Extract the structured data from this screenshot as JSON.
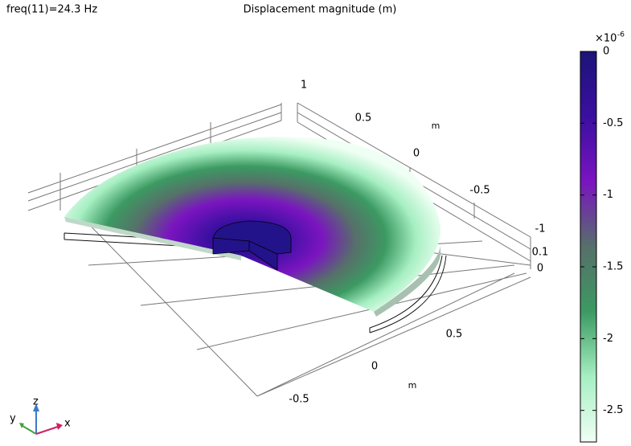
{
  "chart_data": {
    "type": "surface3d",
    "annotation": "freq(11)=24.3 Hz",
    "title": "Displacement magnitude (m)",
    "colormap": [
      "#1c1478",
      "#3a0fa0",
      "#7a14c0",
      "#56706a",
      "#3c9a62",
      "#a6efc2",
      "#f0fff4"
    ],
    "colorbar": {
      "multiplier": "×10",
      "exponent": "-6",
      "lim": [
        -2.72,
        0
      ],
      "ticks": [
        0,
        -0.5,
        -1,
        -1.5,
        -2,
        -2.5
      ]
    },
    "axes": {
      "x": {
        "label": "m",
        "ticks": [
          -0.5,
          0,
          0.5
        ]
      },
      "y": {
        "label": "m",
        "ticks": [
          1,
          0.5,
          0,
          -0.5,
          -1
        ]
      },
      "z": {
        "ticks": [
          0.1,
          0
        ]
      }
    },
    "triad": [
      "x",
      "y",
      "z"
    ]
  }
}
